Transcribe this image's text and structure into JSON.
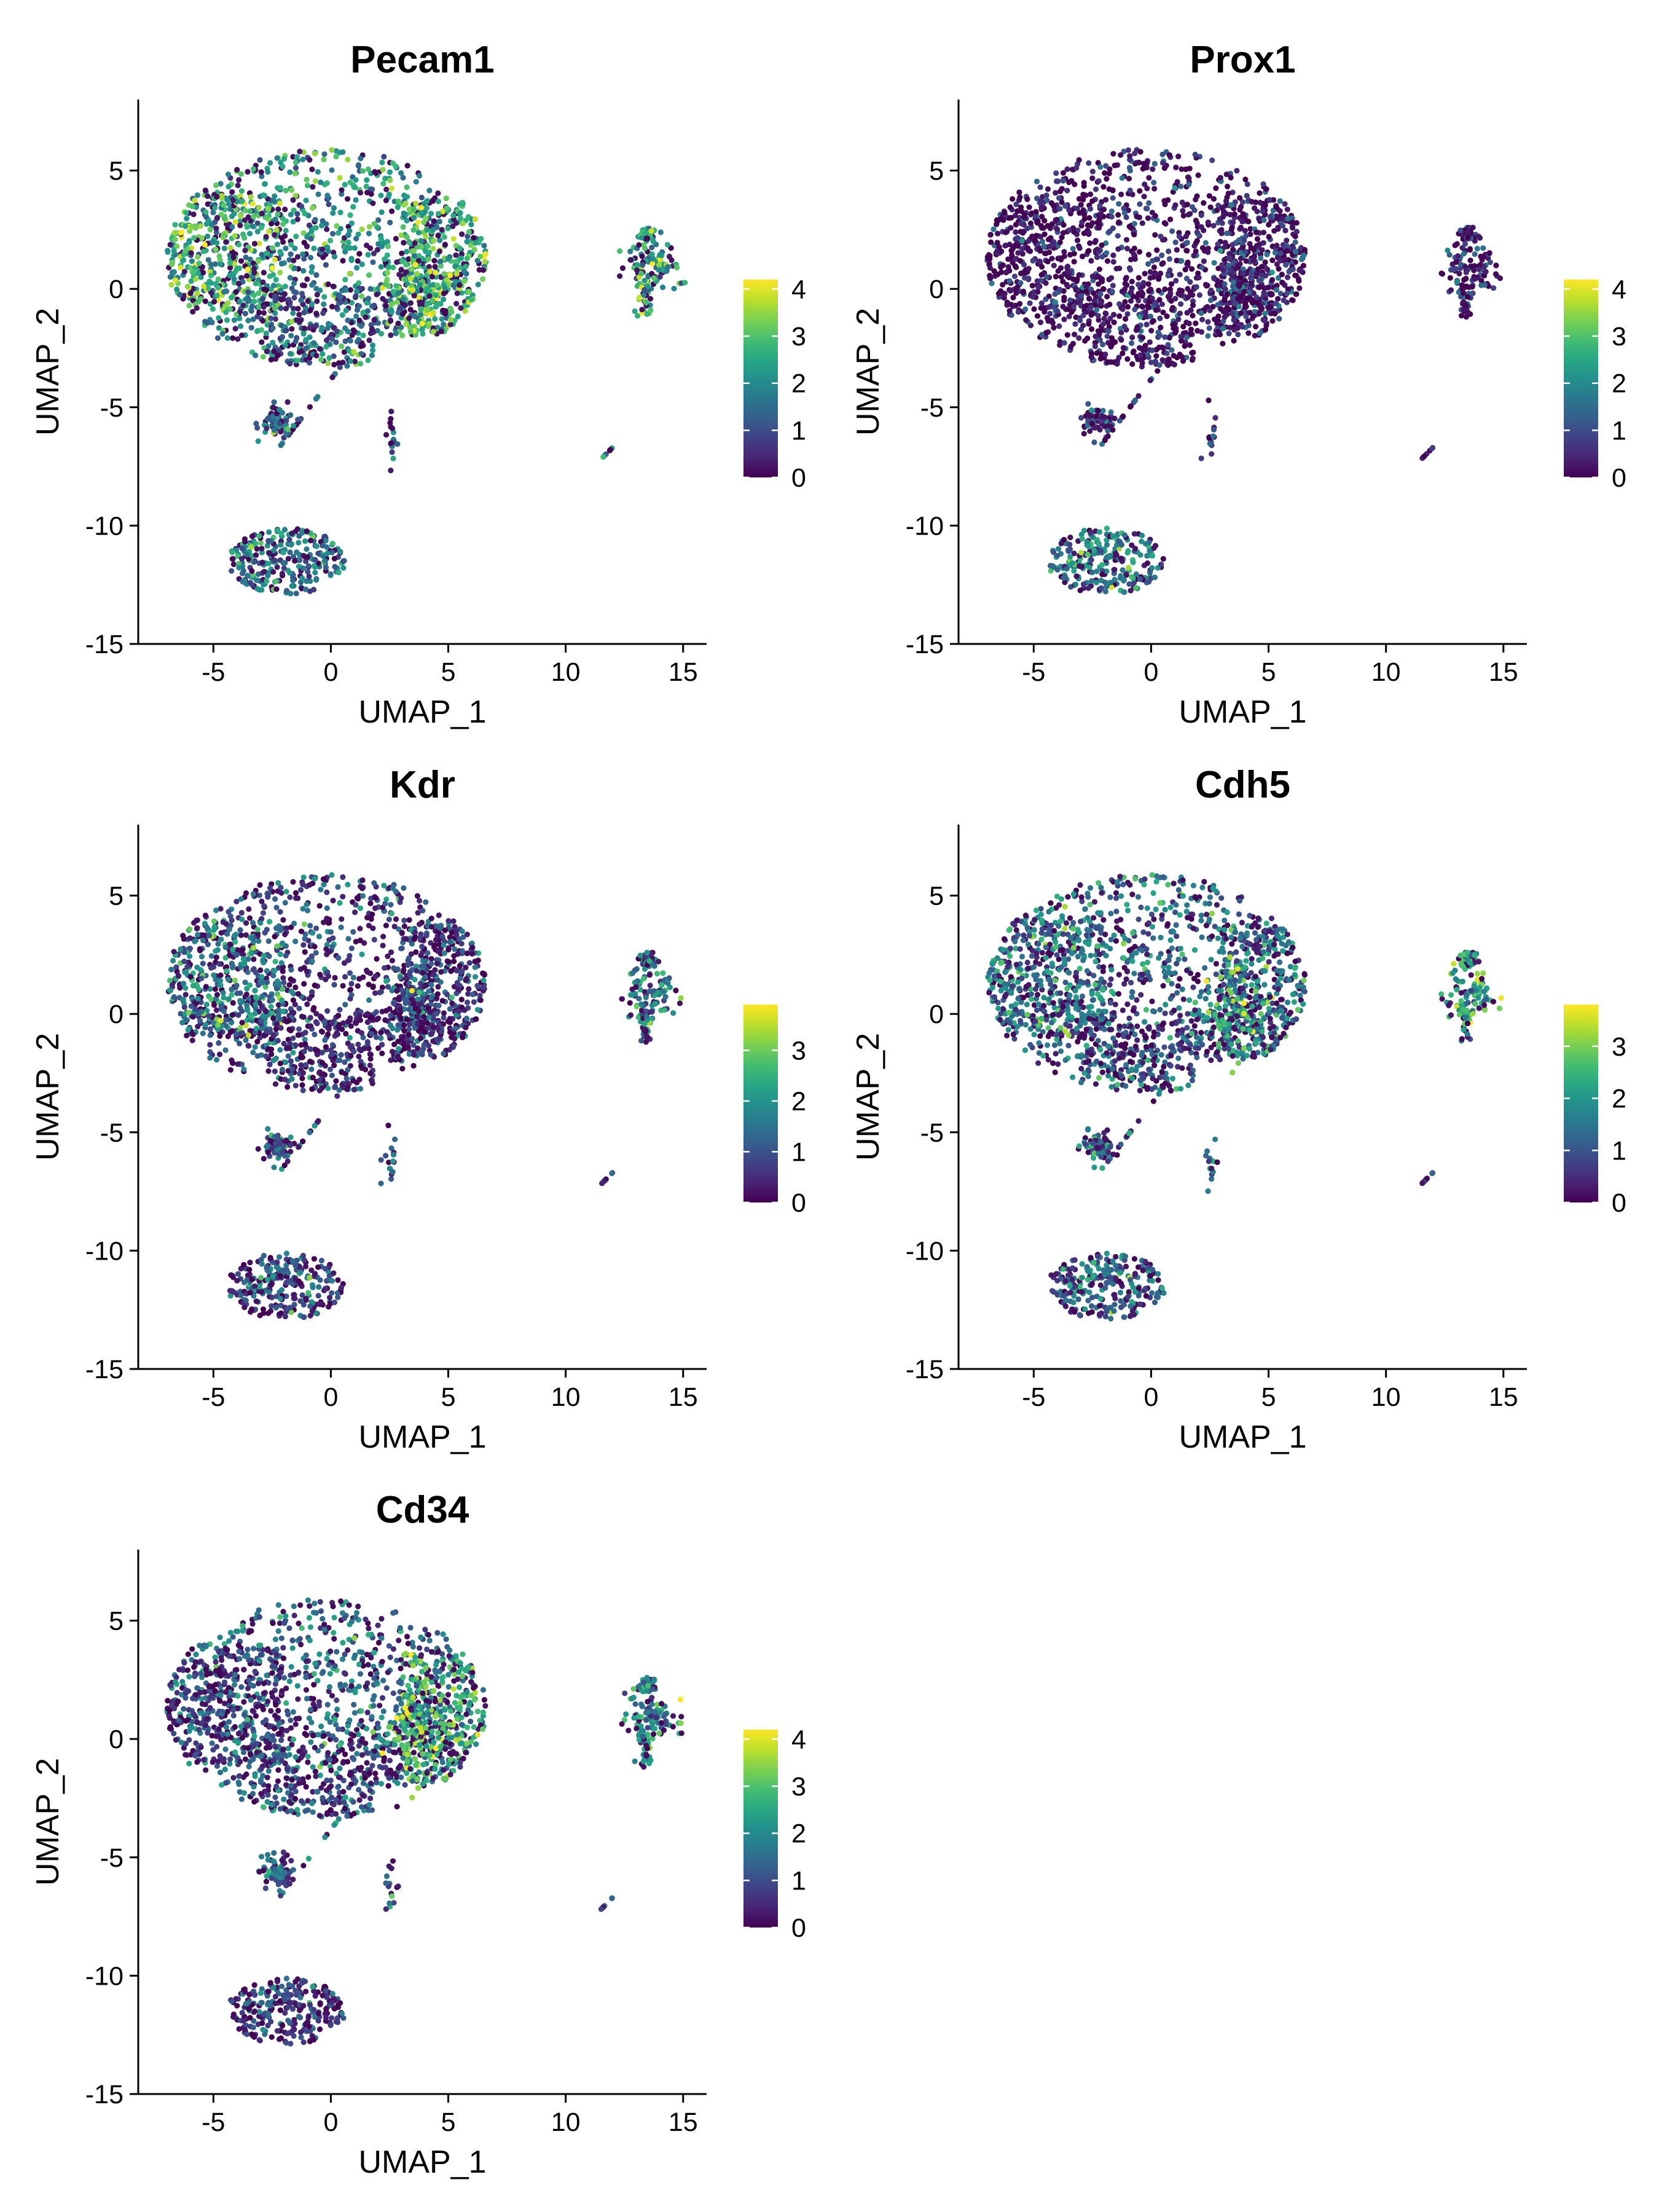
{
  "chart_data": [
    {
      "type": "scatter",
      "title": "Pecam1",
      "xlabel": "UMAP_1",
      "ylabel": "UMAP_2",
      "xlim": [
        -8.2,
        16
      ],
      "ylim": [
        -15,
        8
      ],
      "xticks": [
        -5,
        0,
        5,
        10,
        15
      ],
      "yticks": [
        -15,
        -10,
        -5,
        0,
        5
      ],
      "color_scale": "viridis",
      "color_range": [
        0,
        4.2
      ],
      "legend_ticks": [
        0,
        1,
        2,
        3,
        4
      ],
      "legend_position": "right",
      "grid": false,
      "expression": {
        "main": 2.2,
        "left": 2.9,
        "right": 2.8,
        "lower": 1.0,
        "hotspot": 3.0,
        "island": 2.6,
        "small": 1.5,
        "bottom": 1.7
      }
    },
    {
      "type": "scatter",
      "title": "Prox1",
      "xlabel": "UMAP_1",
      "ylabel": "UMAP_2",
      "xlim": [
        -8.2,
        16
      ],
      "ylim": [
        -15,
        8
      ],
      "xticks": [
        -5,
        0,
        5,
        10,
        15
      ],
      "yticks": [
        -15,
        -10,
        -5,
        0,
        5
      ],
      "color_scale": "viridis",
      "color_range": [
        0,
        4.2
      ],
      "legend_ticks": [
        0,
        1,
        2,
        3,
        4
      ],
      "legend_position": "right",
      "grid": false,
      "expression": {
        "main": 0.25,
        "left": 0.2,
        "right": 0.35,
        "lower": 0.25,
        "hotspot": 0.5,
        "island": 0.6,
        "small": 0.5,
        "bottom": 1.9
      }
    },
    {
      "type": "scatter",
      "title": "Kdr",
      "xlabel": "UMAP_1",
      "ylabel": "UMAP_2",
      "xlim": [
        -8.2,
        16
      ],
      "ylim": [
        -15,
        8
      ],
      "xticks": [
        -5,
        0,
        5,
        10,
        15
      ],
      "yticks": [
        -15,
        -10,
        -5,
        0,
        5
      ],
      "color_scale": "viridis",
      "color_range": [
        0,
        3.9
      ],
      "legend_ticks": [
        0,
        1,
        2,
        3
      ],
      "legend_position": "right",
      "grid": false,
      "expression": {
        "main": 0.8,
        "left": 1.9,
        "right": 0.7,
        "lower": 0.4,
        "hotspot": 0.9,
        "island": 1.7,
        "small": 1.1,
        "bottom": 1.0
      }
    },
    {
      "type": "scatter",
      "title": "Cdh5",
      "xlabel": "UMAP_1",
      "ylabel": "UMAP_2",
      "xlim": [
        -8.2,
        16
      ],
      "ylim": [
        -15,
        8
      ],
      "xticks": [
        -5,
        0,
        5,
        10,
        15
      ],
      "yticks": [
        -15,
        -10,
        -5,
        0,
        5
      ],
      "color_scale": "viridis",
      "color_range": [
        0,
        3.8
      ],
      "legend_ticks": [
        0,
        1,
        2,
        3
      ],
      "legend_position": "right",
      "grid": false,
      "expression": {
        "main": 1.4,
        "left": 1.6,
        "right": 1.5,
        "lower": 0.8,
        "hotspot": 2.5,
        "island": 2.2,
        "small": 1.4,
        "bottom": 1.3
      }
    },
    {
      "type": "scatter",
      "title": "Cd34",
      "xlabel": "UMAP_1",
      "ylabel": "UMAP_2",
      "xlim": [
        -8.2,
        16
      ],
      "ylim": [
        -15,
        8
      ],
      "xticks": [
        -5,
        0,
        5,
        10,
        15
      ],
      "yticks": [
        -15,
        -10,
        -5,
        0,
        5
      ],
      "color_scale": "viridis",
      "color_range": [
        0,
        4.2
      ],
      "legend_ticks": [
        0,
        1,
        2,
        3,
        4
      ],
      "legend_position": "right",
      "grid": false,
      "expression": {
        "main": 1.5,
        "left": 0.8,
        "right": 2.7,
        "lower": 0.7,
        "hotspot": 3.0,
        "island": 1.9,
        "small": 1.5,
        "bottom": 0.8
      }
    }
  ]
}
